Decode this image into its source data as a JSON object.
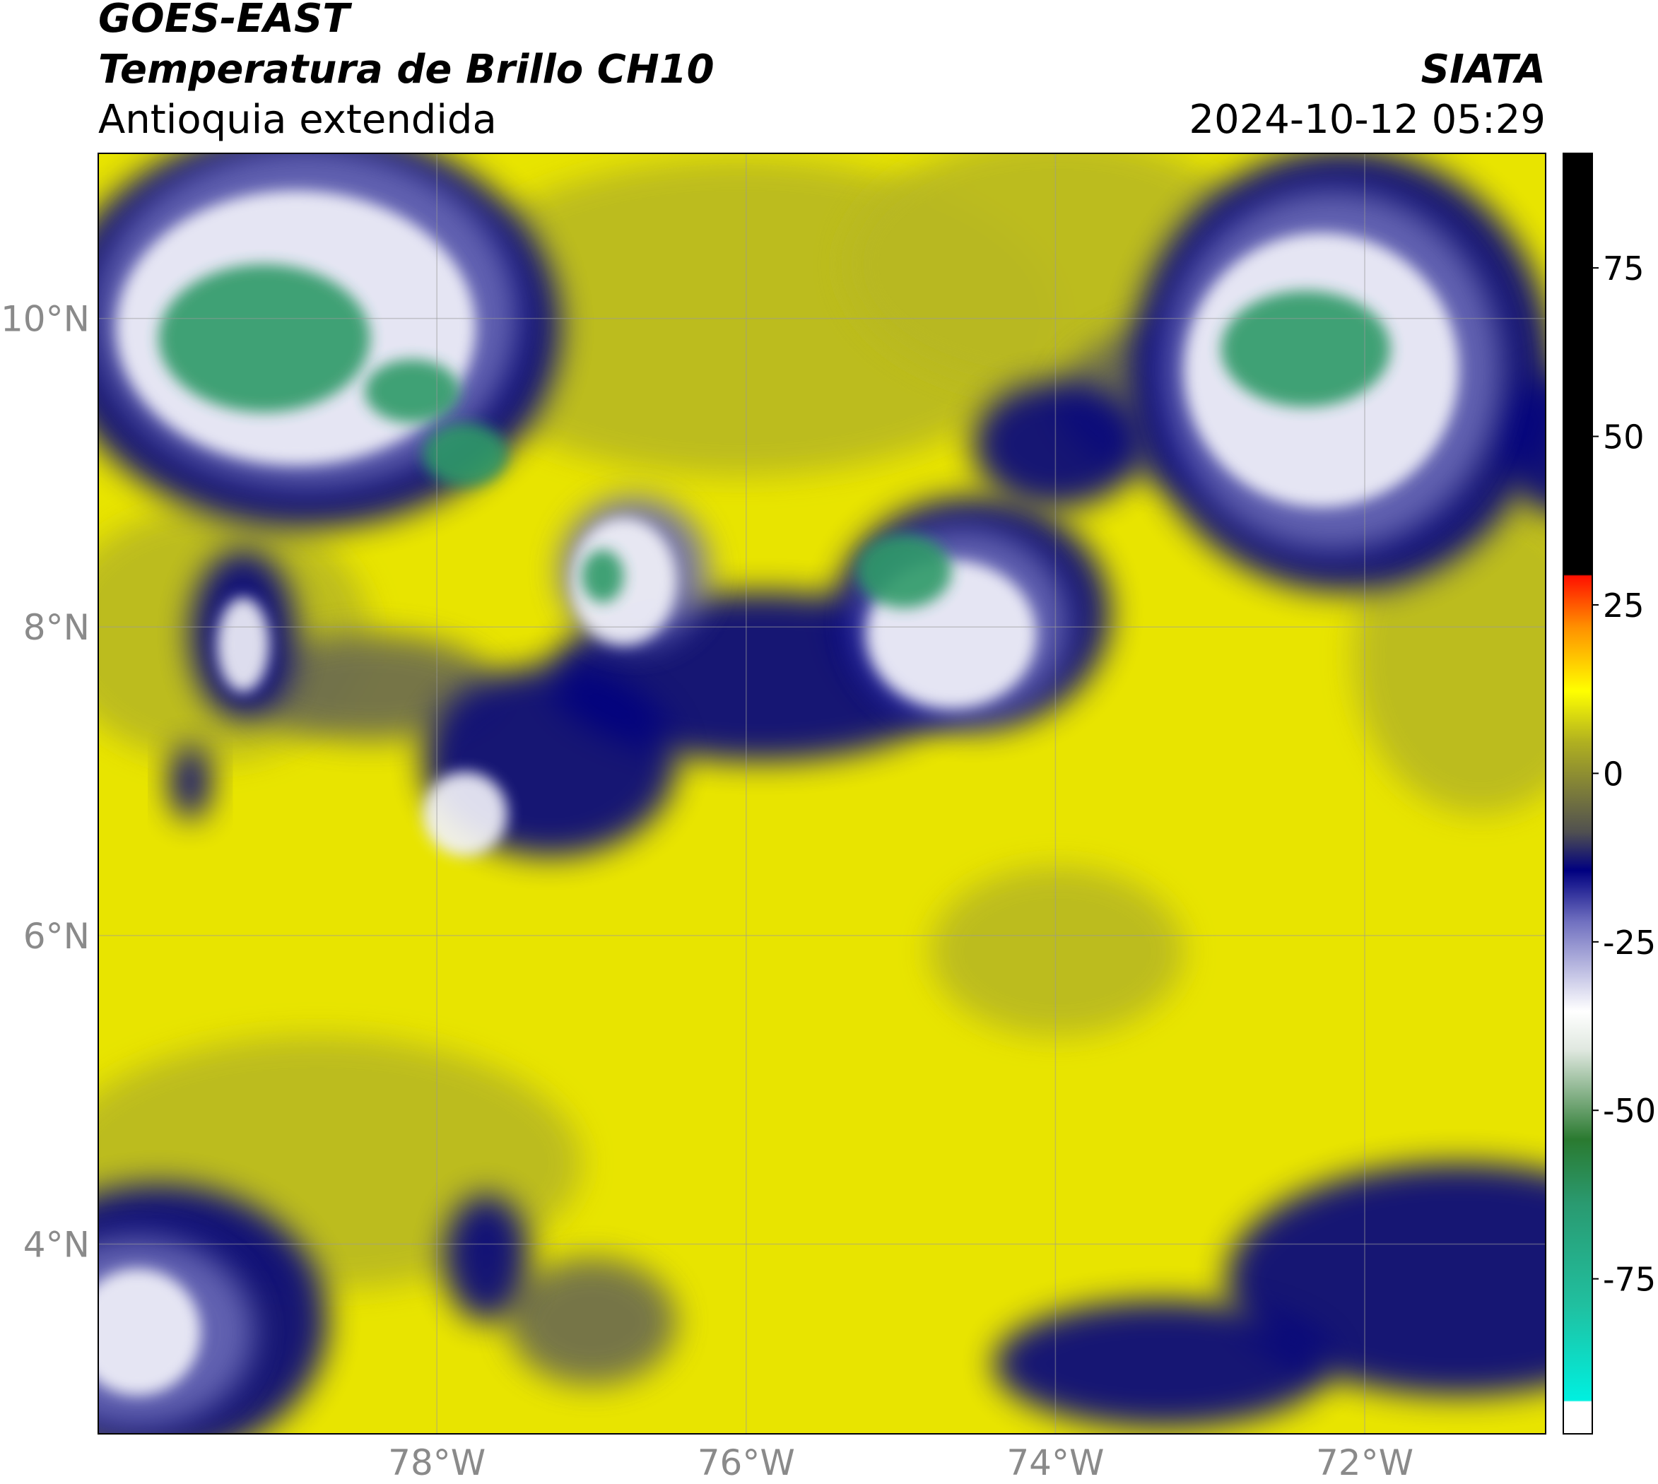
{
  "header": {
    "satellite": "GOES-EAST",
    "product": "Temperatura de Brillo CH10",
    "region": "Antioquia extendida",
    "source": "SIATA",
    "datetime": "2024-10-12 05:29"
  },
  "map": {
    "xlim": [
      -80.19,
      -70.83
    ],
    "ylim": [
      2.77,
      11.07
    ],
    "xticks": [
      {
        "value": -78,
        "label": "78°W"
      },
      {
        "value": -76,
        "label": "76°W"
      },
      {
        "value": -74,
        "label": "74°W"
      },
      {
        "value": -72,
        "label": "72°W"
      }
    ],
    "yticks": [
      {
        "value": 10,
        "label": "10°N"
      },
      {
        "value": 8,
        "label": "8°N"
      },
      {
        "value": 6,
        "label": "6°N"
      },
      {
        "value": 4,
        "label": "4°N"
      }
    ],
    "grid": true
  },
  "colorbar": {
    "lim": [
      -98,
      92
    ],
    "ticks": [
      75,
      50,
      25,
      0,
      -25,
      -50,
      -75
    ]
  }
}
